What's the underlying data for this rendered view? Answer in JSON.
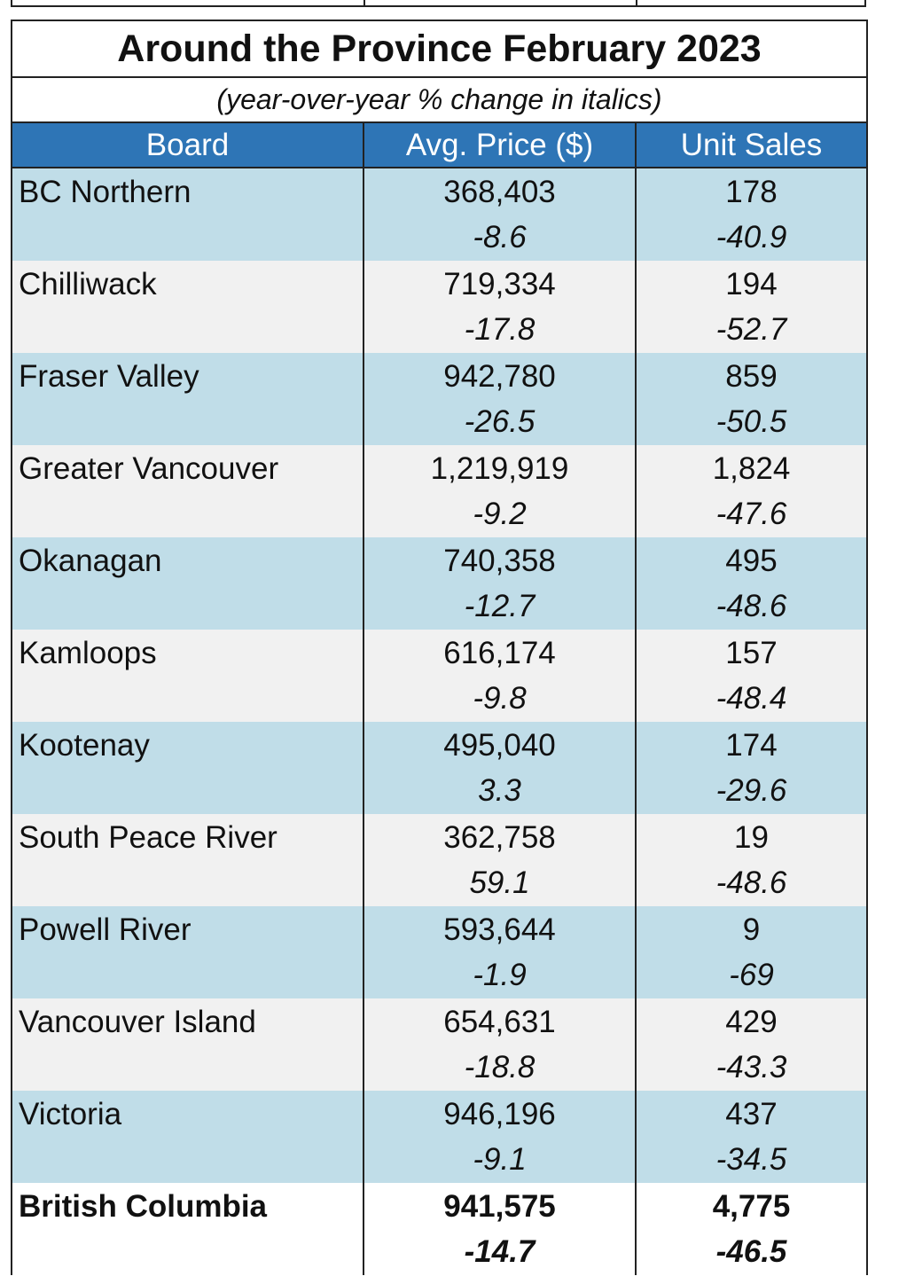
{
  "table": {
    "title": "Around the Province February 2023",
    "subtitle": "(year-over-year % change in italics)",
    "headers": [
      "Board",
      "Avg. Price ($)",
      "Unit Sales"
    ],
    "rows": [
      {
        "board": "BC Northern",
        "price": "368,403",
        "price_change": "-8.6",
        "sales": "178",
        "sales_change": "-40.9"
      },
      {
        "board": "Chilliwack",
        "price": "719,334",
        "price_change": "-17.8",
        "sales": "194",
        "sales_change": "-52.7"
      },
      {
        "board": "Fraser Valley",
        "price": "942,780",
        "price_change": "-26.5",
        "sales": "859",
        "sales_change": "-50.5"
      },
      {
        "board": "Greater Vancouver",
        "price": "1,219,919",
        "price_change": "-9.2",
        "sales": "1,824",
        "sales_change": "-47.6"
      },
      {
        "board": "Okanagan",
        "price": "740,358",
        "price_change": "-12.7",
        "sales": "495",
        "sales_change": "-48.6"
      },
      {
        "board": "Kamloops",
        "price": "616,174",
        "price_change": "-9.8",
        "sales": "157",
        "sales_change": "-48.4"
      },
      {
        "board": "Kootenay",
        "price": "495,040",
        "price_change": "3.3",
        "sales": "174",
        "sales_change": "-29.6"
      },
      {
        "board": "South Peace River",
        "price": "362,758",
        "price_change": "59.1",
        "sales": "19",
        "sales_change": "-48.6"
      },
      {
        "board": "Powell River",
        "price": "593,644",
        "price_change": "-1.9",
        "sales": "9",
        "sales_change": "-69"
      },
      {
        "board": "Vancouver Island",
        "price": "654,631",
        "price_change": "-18.8",
        "sales": "429",
        "sales_change": "-43.3"
      },
      {
        "board": "Victoria",
        "price": "946,196",
        "price_change": "-9.1",
        "sales": "437",
        "sales_change": "-34.5"
      }
    ],
    "total": {
      "board": "British Columbia",
      "price": "941,575",
      "price_change": "-14.7",
      "sales": "4,775",
      "sales_change": "-46.5"
    }
  },
  "colors": {
    "header_bg": "#2e75b6",
    "row_blue": "#c0dde8",
    "row_grey": "#f1f1f1"
  }
}
